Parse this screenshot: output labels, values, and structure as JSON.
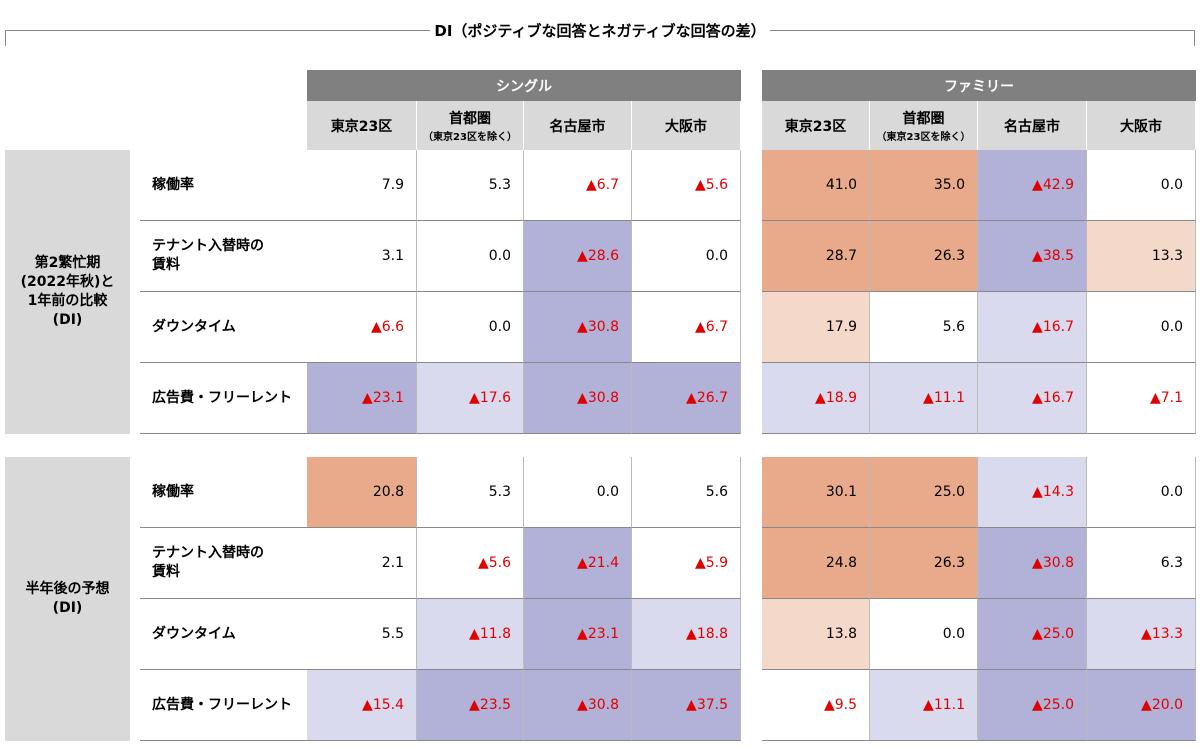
{
  "title": "DI（ポジティブな回答とネガティブな回答の差）",
  "groups": [
    {
      "name": "シングル",
      "columns": [
        {
          "name": "東京23区"
        },
        {
          "name": "首都圏",
          "note": "（東京23区を除く）"
        },
        {
          "name": "名古屋市"
        },
        {
          "name": "大阪市"
        }
      ]
    },
    {
      "name": "ファミリー",
      "columns": [
        {
          "name": "東京23区"
        },
        {
          "name": "首都圏",
          "note": "（東京23区を除く）"
        },
        {
          "name": "名古屋市"
        },
        {
          "name": "大阪市"
        }
      ]
    }
  ],
  "sections": [
    {
      "label": "第2繁忙期\n(2022年秋)と\n1年前の比較\n(DI)",
      "rows": [
        {
          "label": "稼働率",
          "cells": [
            {
              "text": "7.9",
              "fill": "#ffffff"
            },
            {
              "text": "5.3",
              "fill": "#ffffff"
            },
            {
              "text": "▲6.7",
              "fill": "#ffffff"
            },
            {
              "text": "▲5.6",
              "fill": "#ffffff"
            },
            {
              "text": "41.0",
              "fill": "#e8aa8a"
            },
            {
              "text": "35.0",
              "fill": "#e8aa8a"
            },
            {
              "text": "▲42.9",
              "fill": "#b2b2d9"
            },
            {
              "text": "0.0",
              "fill": "#ffffff"
            }
          ]
        },
        {
          "label": "テナント入替時の\n賃料",
          "cells": [
            {
              "text": "3.1",
              "fill": "#ffffff"
            },
            {
              "text": "0.0",
              "fill": "#ffffff"
            },
            {
              "text": "▲28.6",
              "fill": "#b2b2d9"
            },
            {
              "text": "0.0",
              "fill": "#ffffff"
            },
            {
              "text": "28.7",
              "fill": "#e8aa8a"
            },
            {
              "text": "26.3",
              "fill": "#e8aa8a"
            },
            {
              "text": "▲38.5",
              "fill": "#b2b2d9"
            },
            {
              "text": "13.3",
              "fill": "#f4d8ca"
            }
          ]
        },
        {
          "label": "ダウンタイム",
          "cells": [
            {
              "text": "▲6.6",
              "fill": "#ffffff"
            },
            {
              "text": "0.0",
              "fill": "#ffffff"
            },
            {
              "text": "▲30.8",
              "fill": "#b2b2d9"
            },
            {
              "text": "▲6.7",
              "fill": "#ffffff"
            },
            {
              "text": "17.9",
              "fill": "#f4d8ca"
            },
            {
              "text": "5.6",
              "fill": "#ffffff"
            },
            {
              "text": "▲16.7",
              "fill": "#dadaee"
            },
            {
              "text": "0.0",
              "fill": "#ffffff"
            }
          ]
        },
        {
          "label": "広告費・フリーレント",
          "cells": [
            {
              "text": "▲23.1",
              "fill": "#b2b2d9"
            },
            {
              "text": "▲17.6",
              "fill": "#dadaee"
            },
            {
              "text": "▲30.8",
              "fill": "#b2b2d9"
            },
            {
              "text": "▲26.7",
              "fill": "#b2b2d9"
            },
            {
              "text": "▲18.9",
              "fill": "#dadaee"
            },
            {
              "text": "▲11.1",
              "fill": "#dadaee"
            },
            {
              "text": "▲16.7",
              "fill": "#dadaee"
            },
            {
              "text": "▲7.1",
              "fill": "#ffffff"
            }
          ]
        }
      ]
    },
    {
      "label": "半年後の予想\n(DI)",
      "rows": [
        {
          "label": "稼働率",
          "cells": [
            {
              "text": "20.8",
              "fill": "#e8aa8a"
            },
            {
              "text": "5.3",
              "fill": "#ffffff"
            },
            {
              "text": "0.0",
              "fill": "#ffffff"
            },
            {
              "text": "5.6",
              "fill": "#ffffff"
            },
            {
              "text": "30.1",
              "fill": "#e8aa8a"
            },
            {
              "text": "25.0",
              "fill": "#e8aa8a"
            },
            {
              "text": "▲14.3",
              "fill": "#dadaee"
            },
            {
              "text": "0.0",
              "fill": "#ffffff"
            }
          ]
        },
        {
          "label": "テナント入替時の\n賃料",
          "cells": [
            {
              "text": "2.1",
              "fill": "#ffffff"
            },
            {
              "text": "▲5.6",
              "fill": "#ffffff"
            },
            {
              "text": "▲21.4",
              "fill": "#b2b2d9"
            },
            {
              "text": "▲5.9",
              "fill": "#ffffff"
            },
            {
              "text": "24.8",
              "fill": "#e8aa8a"
            },
            {
              "text": "26.3",
              "fill": "#e8aa8a"
            },
            {
              "text": "▲30.8",
              "fill": "#b2b2d9"
            },
            {
              "text": "6.3",
              "fill": "#ffffff"
            }
          ]
        },
        {
          "label": "ダウンタイム",
          "cells": [
            {
              "text": "5.5",
              "fill": "#ffffff"
            },
            {
              "text": "▲11.8",
              "fill": "#dadaee"
            },
            {
              "text": "▲23.1",
              "fill": "#b2b2d9"
            },
            {
              "text": "▲18.8",
              "fill": "#dadaee"
            },
            {
              "text": "13.8",
              "fill": "#f4d8ca"
            },
            {
              "text": "0.0",
              "fill": "#ffffff"
            },
            {
              "text": "▲25.0",
              "fill": "#b2b2d9"
            },
            {
              "text": "▲13.3",
              "fill": "#dadaee"
            }
          ]
        },
        {
          "label": "広告費・フリーレント",
          "cells": [
            {
              "text": "▲15.4",
              "fill": "#dadaee"
            },
            {
              "text": "▲23.5",
              "fill": "#b2b2d9"
            },
            {
              "text": "▲30.8",
              "fill": "#b2b2d9"
            },
            {
              "text": "▲37.5",
              "fill": "#b2b2d9"
            },
            {
              "text": "▲9.5",
              "fill": "#ffffff"
            },
            {
              "text": "▲11.1",
              "fill": "#dadaee"
            },
            {
              "text": "▲25.0",
              "fill": "#b2b2d9"
            },
            {
              "text": "▲20.0",
              "fill": "#b2b2d9"
            }
          ]
        }
      ]
    }
  ]
}
